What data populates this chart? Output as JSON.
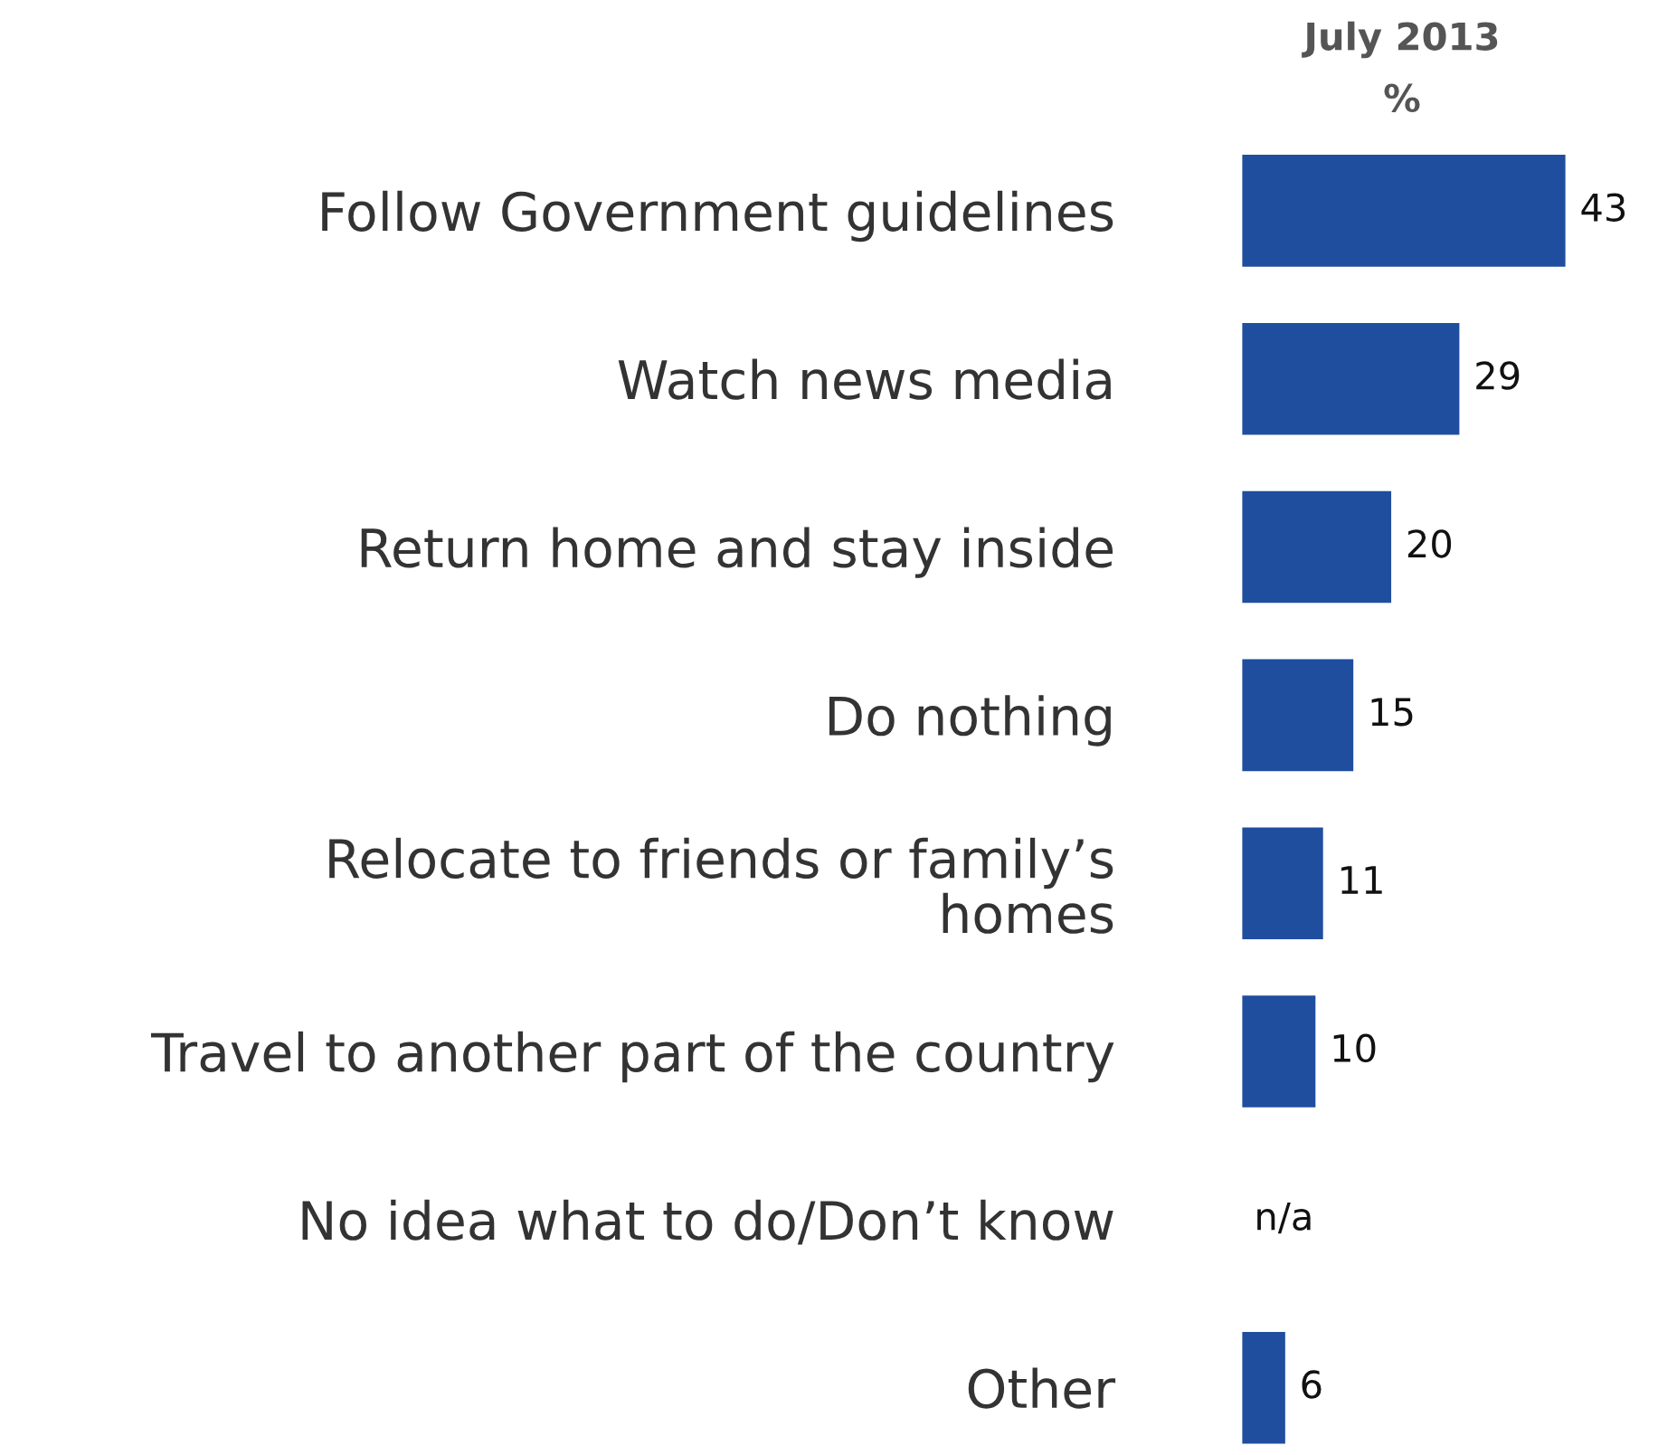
{
  "chart_data": {
    "type": "bar",
    "orientation": "horizontal",
    "title": "July 2013",
    "subtitle": "%",
    "categories": [
      "Follow Government guidelines",
      "Watch news media",
      "Return home and stay inside",
      "Do nothing",
      "Relocate to friends or family’s\nhomes",
      "Travel to another part of the country",
      "No idea what to do/Don’t know",
      "Other"
    ],
    "values": [
      43,
      29,
      20,
      15,
      11,
      10,
      null,
      6
    ],
    "value_labels": [
      "43",
      "29",
      "20",
      "15",
      "11",
      "10",
      "n/a",
      "6"
    ],
    "color": "#1f4e9e"
  }
}
